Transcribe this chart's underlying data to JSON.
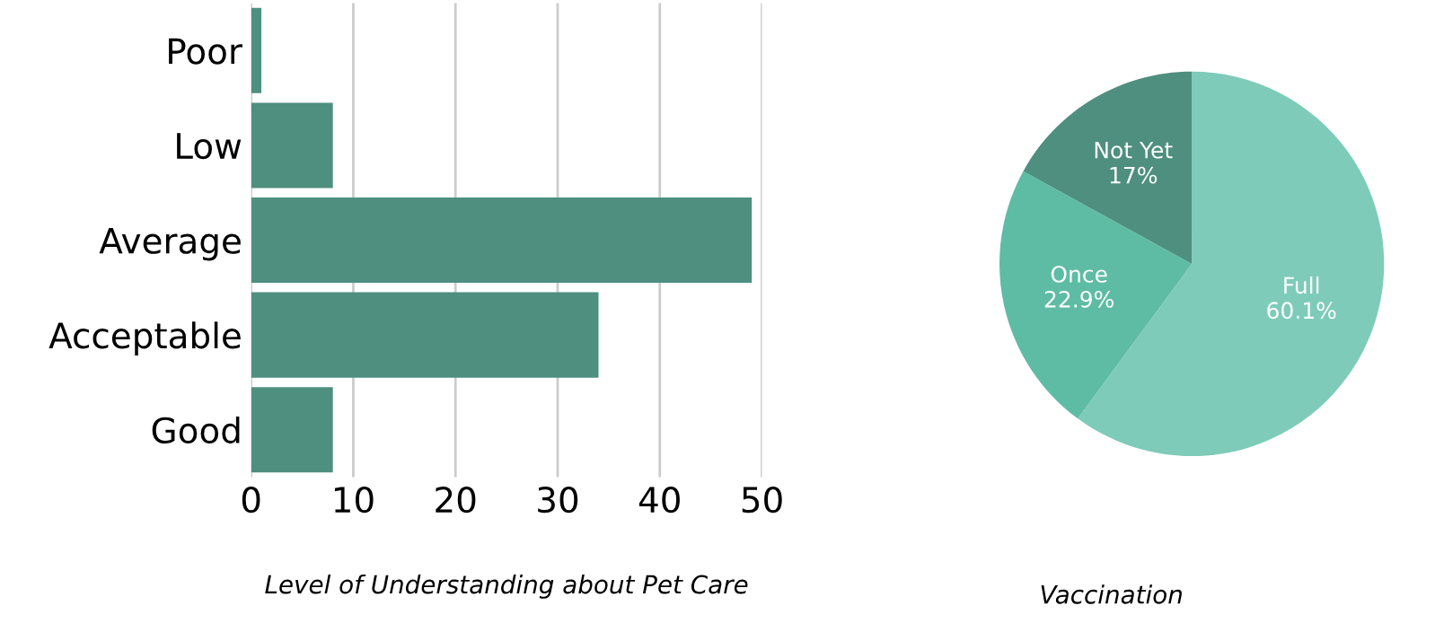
{
  "chart_data": [
    {
      "type": "bar",
      "orientation": "horizontal",
      "xlabel": "Level of Understanding about Pet Care",
      "categories": [
        "Poor",
        "Low",
        "Average",
        "Acceptable",
        "Good"
      ],
      "values": [
        1,
        8,
        49,
        34,
        8
      ],
      "color": "#4e8f7f",
      "xlim": [
        0,
        50
      ],
      "xticks": [
        0,
        10,
        20,
        30,
        40,
        50
      ],
      "grid": "x"
    },
    {
      "type": "pie",
      "title": "Vaccination",
      "categories": [
        "Full",
        "Once",
        "Not Yet"
      ],
      "values": [
        60.1,
        22.9,
        17
      ],
      "value_labels": [
        "60.1%",
        "22.9%",
        "17%"
      ],
      "colors": [
        "#7ecbb9",
        "#5fbca4",
        "#4e8f7f"
      ]
    }
  ]
}
